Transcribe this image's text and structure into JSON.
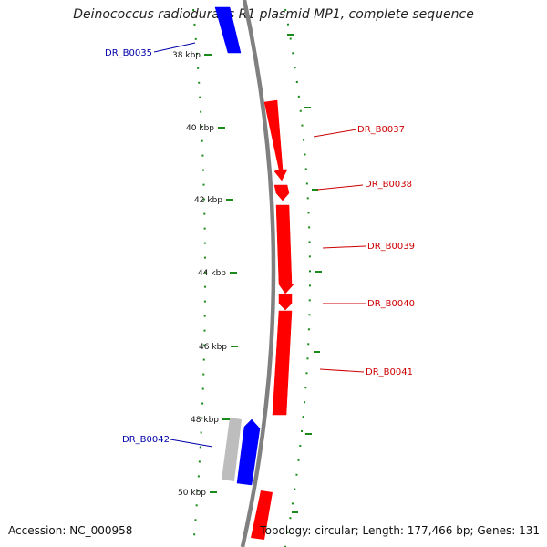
{
  "title": "Deinococcus radiodurans R1 plasmid MP1, complete sequence",
  "footer": {
    "accession": "Accession: NC_000958",
    "summary": "Topology: circular; Length: 177,466 bp; Genes: 131"
  },
  "colors": {
    "forward_gene": "#ff0000",
    "reverse_gene": "#0000ff",
    "other_feature": "#bdbdbd",
    "backbone": "#808080",
    "tick": "#1a8a1a"
  },
  "ticks": [
    "38 kbp",
    "40 kbp",
    "42 kbp",
    "44 kbp",
    "46 kbp",
    "48 kbp",
    "50 kbp"
  ],
  "genes": [
    {
      "label": "DR_B0035",
      "strand": "reverse"
    },
    {
      "label": "DR_B0037",
      "strand": "forward"
    },
    {
      "label": "DR_B0038",
      "strand": "forward"
    },
    {
      "label": "DR_B0039",
      "strand": "forward"
    },
    {
      "label": "DR_B0040",
      "strand": "forward"
    },
    {
      "label": "DR_B0041",
      "strand": "forward"
    },
    {
      "label": "DR_B0042",
      "strand": "reverse"
    }
  ]
}
